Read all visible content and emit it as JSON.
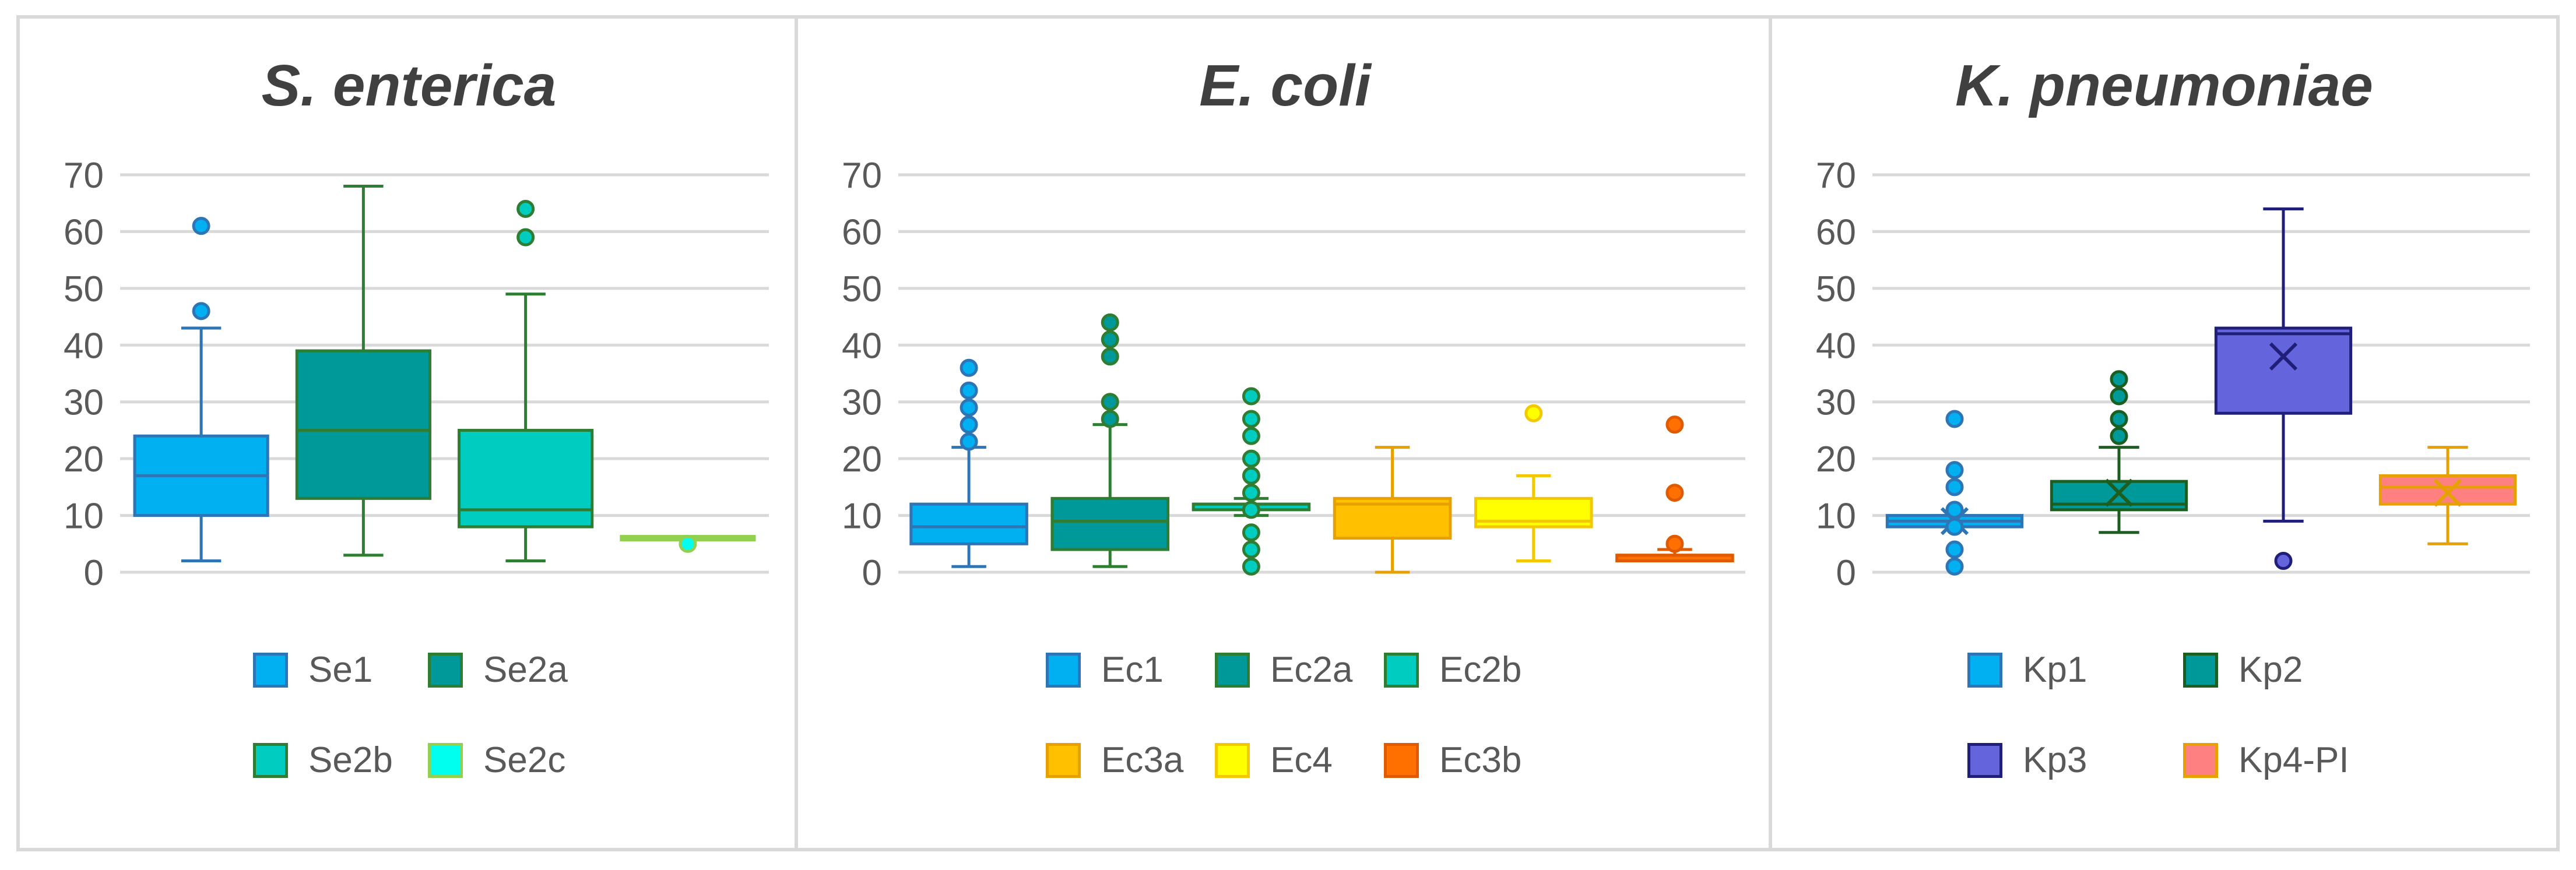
{
  "chart_data": [
    {
      "type": "box",
      "title": "S. enterica",
      "ylim": [
        0,
        70
      ],
      "yticks": [
        0,
        10,
        20,
        30,
        40,
        50,
        60,
        70
      ],
      "grid": true,
      "legend_position": "bottom",
      "series": [
        {
          "name": "Se1",
          "min": 2,
          "q1": 10,
          "median": 17,
          "q3": 24,
          "max": 43,
          "outliers": [
            46,
            61
          ],
          "fill": "#00B0F0",
          "stroke": "#2E75B6"
        },
        {
          "name": "Se2a",
          "min": 3,
          "q1": 13,
          "median": 25,
          "q3": 39,
          "max": 68,
          "outliers": [],
          "fill": "#009999",
          "stroke": "#2E7D32"
        },
        {
          "name": "Se2b",
          "min": 2,
          "q1": 8,
          "median": 11,
          "q3": 25,
          "max": 49,
          "outliers": [
            59,
            64
          ],
          "fill": "#00CCC0",
          "stroke": "#2E7D32"
        },
        {
          "name": "Se2c",
          "min": 6,
          "q1": 6,
          "median": 6,
          "q3": 6,
          "max": 6,
          "outliers": [
            5
          ],
          "fill": "#00FFEE",
          "stroke": "#92D050"
        }
      ]
    },
    {
      "type": "box",
      "title": "E. coli",
      "ylim": [
        0,
        70
      ],
      "yticks": [
        0,
        10,
        20,
        30,
        40,
        50,
        60,
        70
      ],
      "grid": true,
      "legend_position": "bottom",
      "series": [
        {
          "name": "Ec1",
          "min": 1,
          "q1": 5,
          "median": 8,
          "q3": 12,
          "max": 22,
          "outliers": [
            23,
            26,
            29,
            32,
            36
          ],
          "fill": "#00B0F0",
          "stroke": "#2E75B6"
        },
        {
          "name": "Ec2a",
          "min": 1,
          "q1": 4,
          "median": 9,
          "q3": 13,
          "max": 26,
          "outliers": [
            27,
            30,
            38,
            41,
            44
          ],
          "fill": "#009999",
          "stroke": "#2E7D32"
        },
        {
          "name": "Ec2b",
          "min": 10,
          "q1": 11,
          "median": 12,
          "q3": 12,
          "max": 13,
          "outliers": [
            1,
            4,
            7,
            11,
            14,
            17,
            20,
            24,
            27,
            31
          ],
          "fill": "#00CCC0",
          "stroke": "#2E7D32"
        },
        {
          "name": "Ec3a",
          "min": 0,
          "q1": 6,
          "median": 12,
          "q3": 13,
          "max": 22,
          "outliers": [],
          "fill": "#FFC000",
          "stroke": "#E6A100"
        },
        {
          "name": "Ec4",
          "min": 2,
          "q1": 8,
          "median": 9,
          "q3": 13,
          "max": 17,
          "outliers": [
            28
          ],
          "fill": "#FFFF00",
          "stroke": "#F2C800"
        },
        {
          "name": "Ec3b",
          "min": 2,
          "q1": 2,
          "median": 3,
          "q3": 3,
          "max": 4,
          "outliers": [
            5,
            14,
            26
          ],
          "fill": "#FF7000",
          "stroke": "#E05A00"
        }
      ]
    },
    {
      "type": "box",
      "title": "K. pneumoniae",
      "ylim": [
        0,
        70
      ],
      "yticks": [
        0,
        10,
        20,
        30,
        40,
        50,
        60,
        70
      ],
      "grid": true,
      "legend_position": "bottom",
      "series": [
        {
          "name": "Kp1",
          "min": 8,
          "q1": 8,
          "median": 9,
          "q3": 10,
          "max": 10,
          "mean": 9,
          "outliers": [
            1,
            4,
            8,
            11,
            15,
            18,
            27
          ],
          "fill": "#00B0F0",
          "stroke": "#2E75B6"
        },
        {
          "name": "Kp2",
          "min": 7,
          "q1": 11,
          "median": 12,
          "q3": 16,
          "max": 22,
          "mean": 14,
          "outliers": [
            24,
            27,
            31,
            34
          ],
          "fill": "#009999",
          "stroke": "#1B5E20"
        },
        {
          "name": "Kp3",
          "min": 9,
          "q1": 28,
          "median": 42,
          "q3": 43,
          "max": 64,
          "mean": 38,
          "outliers": [
            2
          ],
          "fill": "#6464DC",
          "stroke": "#1F1F7A"
        },
        {
          "name": "Kp4-PI",
          "min": 5,
          "q1": 12,
          "median": 15,
          "q3": 17,
          "max": 22,
          "mean": 14,
          "outliers": [],
          "fill": "#FF8080",
          "stroke": "#E6A100"
        }
      ]
    }
  ]
}
